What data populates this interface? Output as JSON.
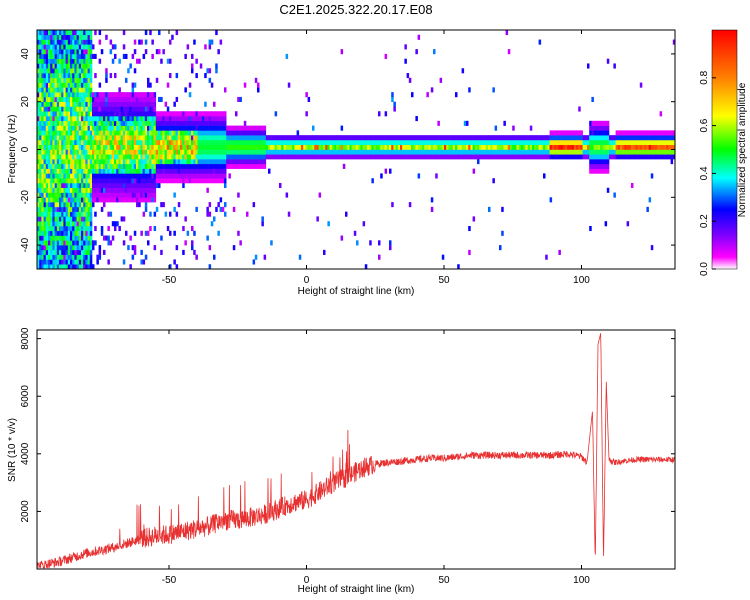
{
  "figure_title": "C2E1.2025.322.20.17.E08",
  "chart_data": [
    {
      "type": "heatmap",
      "xlabel": "Height of straight line (km)",
      "ylabel": "Frequency (Hz)",
      "colorbar_label": "Normalized spectral amplitude",
      "xlim": [
        -98,
        134
      ],
      "ylim": [
        -50,
        50
      ],
      "x_ticks": [
        -50,
        0,
        50,
        100
      ],
      "y_ticks": [
        40,
        20,
        0,
        -20,
        -40
      ],
      "colorbar_range": [
        0,
        1
      ],
      "colorbar_ticks": [
        0.0,
        0.2,
        0.4,
        0.6,
        0.8
      ],
      "colormap": [
        "#ff00ff",
        "#8000ff",
        "#0000ff",
        "#00ffff",
        "#00ff00",
        "#ffff00",
        "#ff8000",
        "#ff0000"
      ],
      "grid": false
    },
    {
      "type": "line",
      "xlabel": "Height of straight line (km)",
      "ylabel": "SNR (10 * v/v)",
      "xlim": [
        -98,
        134
      ],
      "ylim": [
        0,
        8300
      ],
      "x_ticks": [
        -50,
        0,
        50,
        100
      ],
      "y_ticks": [
        2000,
        4000,
        6000,
        8000
      ],
      "color": "#e83030",
      "grid": false,
      "series": [
        {
          "x": [
            -98,
            -90,
            -85,
            -80,
            -75,
            -70,
            -65,
            -60,
            -55,
            -50,
            -45,
            -40,
            -35,
            -30,
            -25,
            -20,
            -15,
            -10,
            -5,
            0,
            5,
            10,
            15,
            20,
            25,
            30,
            35,
            40,
            45,
            50,
            55,
            60,
            65,
            70,
            75,
            80,
            85,
            90,
            95,
            100,
            102,
            104,
            105,
            106,
            107,
            108,
            109,
            110,
            112,
            115,
            120,
            125,
            130,
            134
          ],
          "y": [
            100,
            250,
            400,
            550,
            650,
            750,
            900,
            1050,
            1150,
            1200,
            1300,
            1400,
            1500,
            1700,
            1700,
            1800,
            1900,
            2100,
            2300,
            2400,
            2700,
            3000,
            3200,
            3500,
            3650,
            3700,
            3750,
            3800,
            3850,
            3850,
            3900,
            3950,
            3950,
            3950,
            3950,
            3950,
            3950,
            3950,
            4000,
            3900,
            3700,
            5500,
            200,
            7800,
            8200,
            200,
            6500,
            3800,
            3700,
            3750,
            3800,
            3800,
            3800,
            3800
          ]
        }
      ]
    }
  ]
}
